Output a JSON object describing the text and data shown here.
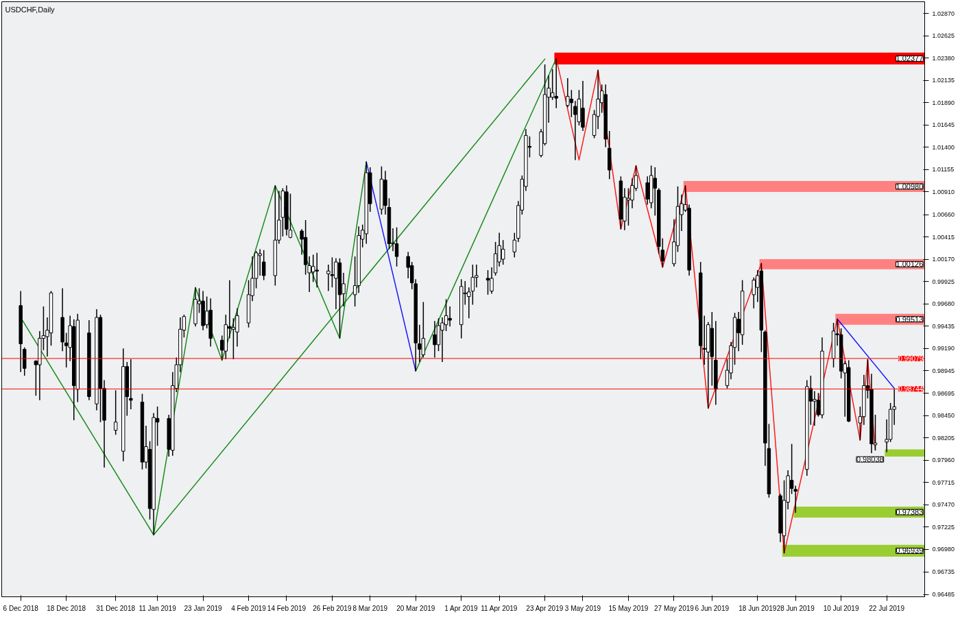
{
  "chart_data": {
    "type": "candlestick",
    "title": "USDCHF,Daily",
    "color": "#000000",
    "xlim": [
      "2018-12-01",
      "2019-08-01"
    ],
    "x": [
      "2018-12-06",
      "2018-12-07",
      "2018-12-10",
      "2018-12-11",
      "2018-12-12",
      "2018-12-13",
      "2018-12-14",
      "2018-12-17",
      "2018-12-18",
      "2018-12-19",
      "2018-12-20",
      "2018-12-21",
      "2018-12-24",
      "2018-12-26",
      "2018-12-27",
      "2018-12-28",
      "2018-12-31",
      "2019-01-02",
      "2019-01-03",
      "2019-01-04",
      "2019-01-07",
      "2019-01-08",
      "2019-01-09",
      "2019-01-10",
      "2019-01-11",
      "2019-01-14",
      "2019-01-15",
      "2019-01-16",
      "2019-01-17",
      "2019-01-18",
      "2019-01-21",
      "2019-01-22",
      "2019-01-23",
      "2019-01-24",
      "2019-01-25",
      "2019-01-28",
      "2019-01-29",
      "2019-01-30",
      "2019-01-31",
      "2019-02-01",
      "2019-02-04",
      "2019-02-05",
      "2019-02-06",
      "2019-02-07",
      "2019-02-08",
      "2019-02-11",
      "2019-02-12",
      "2019-02-13",
      "2019-02-14",
      "2019-02-15",
      "2019-02-18",
      "2019-02-19",
      "2019-02-20",
      "2019-02-21",
      "2019-02-22",
      "2019-02-25",
      "2019-02-26",
      "2019-02-27",
      "2019-02-28",
      "2019-03-01",
      "2019-03-04",
      "2019-03-05",
      "2019-03-06",
      "2019-03-07",
      "2019-03-08",
      "2019-03-11",
      "2019-03-12",
      "2019-03-13",
      "2019-03-14",
      "2019-03-15",
      "2019-03-18",
      "2019-03-19",
      "2019-03-20",
      "2019-03-21",
      "2019-03-22",
      "2019-03-25",
      "2019-03-26",
      "2019-03-27",
      "2019-03-28",
      "2019-03-29",
      "2019-04-01",
      "2019-04-02",
      "2019-04-03",
      "2019-04-04",
      "2019-04-05",
      "2019-04-08",
      "2019-04-09",
      "2019-04-10",
      "2019-04-11",
      "2019-04-12",
      "2019-04-15",
      "2019-04-16",
      "2019-04-17",
      "2019-04-18",
      "2019-04-19",
      "2019-04-22",
      "2019-04-23",
      "2019-04-24",
      "2019-04-25",
      "2019-04-26",
      "2019-04-29",
      "2019-04-30",
      "2019-05-01",
      "2019-05-02",
      "2019-05-03",
      "2019-05-06",
      "2019-05-07",
      "2019-05-08",
      "2019-05-09",
      "2019-05-10",
      "2019-05-13",
      "2019-05-14",
      "2019-05-15",
      "2019-05-16",
      "2019-05-17",
      "2019-05-20",
      "2019-05-21",
      "2019-05-22",
      "2019-05-23",
      "2019-05-24",
      "2019-05-27",
      "2019-05-28",
      "2019-05-29",
      "2019-05-30",
      "2019-05-31",
      "2019-06-03",
      "2019-06-04",
      "2019-06-05",
      "2019-06-06",
      "2019-06-07",
      "2019-06-10",
      "2019-06-11",
      "2019-06-12",
      "2019-06-13",
      "2019-06-14",
      "2019-06-17",
      "2019-06-18",
      "2019-06-19",
      "2019-06-20",
      "2019-06-21",
      "2019-06-24",
      "2019-06-25",
      "2019-06-26",
      "2019-06-27",
      "2019-06-28",
      "2019-07-01",
      "2019-07-02",
      "2019-07-03",
      "2019-07-04",
      "2019-07-05",
      "2019-07-08",
      "2019-07-09",
      "2019-07-10",
      "2019-07-11",
      "2019-07-12",
      "2019-07-15",
      "2019-07-16",
      "2019-07-17",
      "2019-07-18",
      "2019-07-19",
      "2019-07-22",
      "2019-07-23",
      "2019-07-24"
    ],
    "ohlc": [
      [
        0.9966,
        0.9982,
        0.9893,
        0.9924
      ],
      [
        0.9918,
        0.992,
        0.9889,
        0.9897
      ],
      [
        0.9905,
        0.9906,
        0.9867,
        0.9901
      ],
      [
        0.9901,
        0.9938,
        0.9862,
        0.993
      ],
      [
        0.993,
        0.9965,
        0.9917,
        0.9933
      ],
      [
        0.9932,
        0.9953,
        0.991,
        0.9939
      ],
      [
        0.9936,
        0.9982,
        0.9922,
        0.998
      ],
      [
        0.9953,
        0.9985,
        0.9916,
        0.9926
      ],
      [
        0.9925,
        0.9936,
        0.9898,
        0.9922
      ],
      [
        0.992,
        0.9955,
        0.9905,
        0.9944
      ],
      [
        0.9943,
        0.9951,
        0.984,
        0.9878
      ],
      [
        0.9874,
        0.9957,
        0.986,
        0.995
      ],
      [
        0.9936,
        0.995,
        0.9862,
        0.9866
      ],
      [
        0.9858,
        0.9962,
        0.9851,
        0.9953
      ],
      [
        0.9953,
        0.9956,
        0.9838,
        0.9875
      ],
      [
        0.9875,
        0.9884,
        0.9788,
        0.984
      ],
      [
        0.9829,
        0.9873,
        0.9824,
        0.9838
      ],
      [
        0.9806,
        0.9919,
        0.9795,
        0.9899
      ],
      [
        0.9899,
        0.9904,
        0.9845,
        0.9866
      ],
      [
        0.9864,
        0.9907,
        0.9852,
        0.9862
      ],
      [
        0.986,
        0.9869,
        0.9786,
        0.9794
      ],
      [
        0.9794,
        0.9834,
        0.9787,
        0.9811
      ],
      [
        0.9808,
        0.9817,
        0.9731,
        0.9743
      ],
      [
        0.9742,
        0.9848,
        0.9714,
        0.9843
      ],
      [
        0.9842,
        0.9855,
        0.9812,
        0.9838
      ],
      [
        0.9842,
        0.9846,
        0.98,
        0.9808
      ],
      [
        0.9807,
        0.9893,
        0.9801,
        0.9878
      ],
      [
        0.9875,
        0.9909,
        0.9871,
        0.9901
      ],
      [
        0.9901,
        0.9953,
        0.9893,
        0.994
      ],
      [
        0.9939,
        0.9956,
        0.9931,
        0.9954
      ],
      [
        0.9946,
        0.9986,
        0.9943,
        0.9973
      ],
      [
        0.9968,
        0.9985,
        0.9958,
        0.9971
      ],
      [
        0.9971,
        0.9982,
        0.9939,
        0.9944
      ],
      [
        0.9945,
        0.9976,
        0.9941,
        0.996
      ],
      [
        0.9961,
        0.9974,
        0.9921,
        0.993
      ],
      [
        0.9928,
        0.9933,
        0.9906,
        0.9917
      ],
      [
        0.9916,
        0.9956,
        0.9907,
        0.9945
      ],
      [
        0.9943,
        0.9994,
        0.993,
        0.9941
      ],
      [
        0.994,
        0.9952,
        0.9907,
        0.9942
      ],
      [
        0.9937,
        0.9963,
        0.9921,
        0.9955
      ],
      [
        0.9947,
        0.9994,
        0.9942,
        0.9978
      ],
      [
        0.9977,
        1.002,
        0.9971,
        0.9996
      ],
      [
        0.9996,
        1.0026,
        0.9985,
        1.0024
      ],
      [
        1.0021,
        1.0028,
        0.9999,
        1.0023
      ],
      [
        1.0014,
        1.0027,
        0.9994,
        0.9999
      ],
      [
        0.9999,
        1.0098,
        0.9988,
        1.0038
      ],
      [
        1.0038,
        1.0092,
        1.0034,
        1.006
      ],
      [
        1.0063,
        1.0095,
        1.0042,
        1.0092
      ],
      [
        1.0091,
        1.0098,
        1.0043,
        1.005
      ],
      [
        1.0041,
        1.0089,
        1.004,
        1.0049
      ],
      [
        1.0048,
        1.005,
        1.0022,
        1.0039
      ],
      [
        1.0041,
        1.006,
        1.0,
        1.0011
      ],
      [
        1.0002,
        1.002,
        0.9981,
        1.001
      ],
      [
        1.0003,
        1.0022,
        0.9992,
        1.0009
      ],
      [
        1.0005,
        1.0024,
        0.9986,
        1.0004
      ],
      [
        1.0001,
        1.0011,
        0.9982,
        1.0004
      ],
      [
        1.0,
        1.0019,
        0.9986,
        0.9999
      ],
      [
        0.9996,
        1.0018,
        0.9962,
        1.0014
      ],
      [
        1.0013,
        1.0018,
        0.993,
        0.9978
      ],
      [
        0.9979,
        1.0002,
        0.9965,
        0.999
      ],
      [
        0.9978,
        1.002,
        0.9965,
        0.9988
      ],
      [
        0.9988,
        1.0053,
        0.998,
        1.0043
      ],
      [
        1.0039,
        1.0055,
        1.003,
        1.0049
      ],
      [
        1.0045,
        1.0124,
        1.0034,
        1.0112
      ],
      [
        1.0112,
        1.0118,
        1.0069,
        1.0078
      ],
      [
        1.0072,
        1.0119,
        1.0066,
        1.0105
      ],
      [
        1.0104,
        1.0114,
        1.0066,
        1.0076
      ],
      [
        1.0074,
        1.0084,
        1.0028,
        1.0034
      ],
      [
        1.0034,
        1.0051,
        1.0026,
        1.0035
      ],
      [
        1.0034,
        1.0052,
        1.0009,
        1.002
      ],
      [
        1.002,
        1.0025,
        0.9996,
        1.0008
      ],
      [
        1.001,
        1.0014,
        0.9984,
        0.9991
      ],
      [
        0.999,
        0.9995,
        0.9894,
        0.9925
      ],
      [
        0.9924,
        0.9945,
        0.9904,
        0.9918
      ],
      [
        0.9912,
        0.997,
        0.9909,
        0.993
      ],
      [
        0.9934,
        0.9949,
        0.9909,
        0.9923
      ],
      [
        0.9923,
        0.9952,
        0.9916,
        0.9944
      ],
      [
        0.9939,
        0.9953,
        0.9904,
        0.9947
      ],
      [
        0.9945,
        0.9973,
        0.9938,
        0.9955
      ],
      [
        0.9952,
        0.9965,
        0.9943,
        0.995
      ],
      [
        0.9945,
        0.9995,
        0.993,
        0.9987
      ],
      [
        0.9979,
        0.9993,
        0.9967,
        0.998
      ],
      [
        0.9976,
        0.9986,
        0.9952,
        0.9981
      ],
      [
        0.9982,
        1.0011,
        0.9967,
        0.9997
      ],
      [
        0.9997,
        1.0011,
        0.9986,
        0.9999
      ],
      [
        0.9996,
        1.0005,
        0.9978,
        0.9994
      ],
      [
        0.9982,
        1.0008,
        0.9979,
        0.9996
      ],
      [
        1.0002,
        1.0036,
        0.9999,
        1.0023
      ],
      [
        1.0014,
        1.0046,
        1.0009,
        1.0032
      ],
      [
        1.0017,
        1.0038,
        1.0011,
        1.0028
      ],
      [
        1.0025,
        1.0046,
        1.0019,
        1.0038
      ],
      [
        1.004,
        1.0081,
        1.0036,
        1.0076
      ],
      [
        1.0071,
        1.0109,
        1.0066,
        1.0105
      ],
      [
        1.0097,
        1.016,
        1.0092,
        1.0153
      ],
      [
        1.0141,
        1.0152,
        1.0129,
        1.014
      ],
      [
        1.0131,
        1.016,
        1.0129,
        1.0157
      ],
      [
        1.0144,
        1.0231,
        1.0142,
        1.0198
      ],
      [
        1.0195,
        1.0219,
        1.0167,
        1.0205
      ],
      [
        1.0195,
        1.0226,
        1.0192,
        1.02
      ],
      [
        1.0196,
        1.02377,
        1.0183,
        1.0194
      ],
      [
        1.0186,
        1.0216,
        1.0184,
        1.0196
      ],
      [
        1.0193,
        1.0203,
        1.0173,
        1.0189
      ],
      [
        1.0185,
        1.0191,
        1.0126,
        1.0176
      ],
      [
        1.0168,
        1.0203,
        1.0164,
        1.0193
      ],
      [
        1.0183,
        1.0213,
        1.0158,
        1.0162
      ],
      [
        1.0153,
        1.0181,
        1.015,
        1.0176
      ],
      [
        1.0174,
        1.0225,
        1.016,
        1.0193
      ],
      [
        1.0189,
        1.0209,
        1.0178,
        1.0202
      ],
      [
        1.0198,
        1.0209,
        1.014,
        1.0149
      ],
      [
        1.0139,
        1.0158,
        1.0105,
        1.0115
      ],
      [
        1.0103,
        1.0108,
        1.005,
        1.0061
      ],
      [
        1.0059,
        1.0095,
        1.0049,
        1.0085
      ],
      [
        1.0082,
        1.0095,
        1.0054,
        1.0084
      ],
      [
        1.0082,
        1.0106,
        1.0073,
        1.0098
      ],
      [
        1.0095,
        1.012,
        1.0092,
        1.0109
      ],
      [
        1.0101,
        1.0108,
        1.0077,
        1.0083
      ],
      [
        1.0079,
        1.012,
        1.0073,
        1.0109
      ],
      [
        1.0106,
        1.0118,
        1.0065,
        1.0095
      ],
      [
        1.0093,
        1.0095,
        1.0023,
        1.0031
      ],
      [
        1.0027,
        1.004,
        1.0008,
        1.0015
      ],
      [
        1.0012,
        1.0061,
        1.0009,
        1.0036
      ],
      [
        1.0032,
        1.0097,
        1.0025,
        1.0075
      ],
      [
        1.0066,
        1.0088,
        1.0048,
        1.0078
      ],
      [
        1.0071,
        1.0098,
        1.0069,
        1.0077
      ],
      [
        1.0073,
        1.0077,
        0.9999,
        1.0005
      ],
      [
        1.0002,
        1.0014,
        0.9907,
        0.9922
      ],
      [
        0.9919,
        0.9955,
        0.9901,
        0.9918
      ],
      [
        0.9915,
        0.9948,
        0.9853,
        0.9945
      ],
      [
        0.9941,
        0.9959,
        0.9878,
        0.991
      ],
      [
        0.9906,
        0.9949,
        0.9857,
        0.9874
      ],
      [
        0.9878,
        0.9907,
        0.9875,
        0.9895
      ],
      [
        0.9892,
        0.9926,
        0.9885,
        0.9922
      ],
      [
        0.992,
        0.9958,
        0.9901,
        0.9953
      ],
      [
        0.9951,
        0.9959,
        0.9916,
        0.9936
      ],
      [
        0.9934,
        0.9994,
        0.9923,
        0.9982
      ],
      [
        0.9978,
        0.9997,
        0.9963,
        0.9994
      ],
      [
        0.9986,
        1.0005,
        0.997,
        0.9999
      ],
      [
        1.0004,
        1.00126,
        0.9915,
        0.9939
      ],
      [
        0.9937,
        0.9939,
        0.979,
        0.9815
      ],
      [
        0.9809,
        0.9836,
        0.9755,
        0.9759
      ],
      [
        0.9757,
        0.9759,
        0.9706,
        0.9716
      ],
      [
        0.9713,
        0.9774,
        0.96939,
        0.9752
      ],
      [
        0.975,
        0.9785,
        0.9742,
        0.9779
      ],
      [
        0.9774,
        0.9814,
        0.9759,
        0.9765
      ],
      [
        0.9764,
        0.9768,
        0.97383,
        0.9762
      ],
      [
        0.9786,
        0.9884,
        0.9779,
        0.9877
      ],
      [
        0.9875,
        0.9889,
        0.9835,
        0.9861
      ],
      [
        0.9861,
        0.9872,
        0.9834,
        0.9863
      ],
      [
        0.9862,
        0.987,
        0.9844,
        0.9846
      ],
      [
        0.9846,
        0.9931,
        0.9842,
        0.9916
      ],
      [
        0.9908,
        0.9947,
        0.9898,
        0.9938
      ],
      [
        0.9935,
        0.99513,
        0.9922,
        0.9934
      ],
      [
        0.9934,
        0.9941,
        0.9886,
        0.9894
      ],
      [
        0.9892,
        0.9905,
        0.9844,
        0.9902
      ],
      [
        0.9898,
        0.9906,
        0.9838,
        0.9839
      ],
      [
        0.9837,
        0.9855,
        0.9818,
        0.9844
      ],
      [
        0.9844,
        0.989,
        0.9835,
        0.9878
      ],
      [
        0.9878,
        0.9907,
        0.9864,
        0.9873
      ],
      [
        0.9874,
        0.9891,
        0.98038,
        0.9814
      ],
      [
        0.9813,
        0.9846,
        0.9807,
        0.9815
      ],
      [
        0.9816,
        0.9841,
        0.9805,
        0.9819
      ],
      [
        0.9819,
        0.9859,
        0.9816,
        0.9852
      ],
      [
        0.9852,
        0.9874,
        0.9835,
        0.98548
      ]
    ],
    "series": [
      {
        "type": "line",
        "color": "#008000",
        "x": [
          "2018-12-06",
          "2019-01-10",
          "2019-04-23"
        ],
        "values": [
          0.9953,
          0.9714,
          1.0237
        ]
      },
      {
        "type": "line",
        "color": "#008000",
        "x": [
          "2019-01-10",
          "2019-01-21",
          "2019-01-28",
          "2019-02-11",
          "2019-02-28",
          "2019-03-07"
        ],
        "values": [
          0.9714,
          0.9986,
          0.9906,
          1.0098,
          0.993,
          1.0124
        ]
      },
      {
        "type": "line",
        "color": "#0000ff",
        "x": [
          "2019-03-07",
          "2019-03-20"
        ],
        "values": [
          1.0124,
          0.9894
        ]
      },
      {
        "type": "line",
        "color": "#008000",
        "x": [
          "2019-03-20",
          "2019-04-26"
        ],
        "values": [
          0.9894,
          1.02377
        ]
      },
      {
        "type": "line",
        "color": "#ff0000",
        "x": [
          "2019-04-26",
          "2019-05-02",
          "2019-05-07",
          "2019-05-13",
          "2019-05-17",
          "2019-05-24",
          "2019-05-30",
          "2019-06-05",
          "2019-06-19",
          "2019-06-25",
          "2019-07-09",
          "2019-07-15",
          "2019-07-17",
          "2019-07-19"
        ],
        "values": [
          1.02377,
          1.0126,
          1.0225,
          1.005,
          1.012,
          1.0008,
          1.0098,
          0.9853,
          1.00126,
          0.96939,
          0.99513,
          0.9818,
          0.9907,
          0.9807
        ]
      },
      {
        "type": "line",
        "color": "#0000ff",
        "x": [
          "2019-07-09",
          "2019-07-24"
        ],
        "values": [
          0.99513,
          0.9875
        ]
      }
    ],
    "ref_lines": [
      {
        "axis": "y",
        "value": 0.99079,
        "label": "0.99079",
        "color": "#ff0000"
      },
      {
        "axis": "y",
        "value": 0.98744,
        "label": "0.98744",
        "color": "#ff0000"
      }
    ],
    "bands": [
      {
        "axis": "y",
        "from": 1.0231,
        "to": 1.0244,
        "label": "1.02377",
        "color": "#ff0000"
      },
      {
        "axis": "y",
        "from": 1.0091,
        "to": 1.0103,
        "label": "1.00980",
        "color": "#ff8080"
      },
      {
        "axis": "y",
        "from": 1.0006,
        "to": 1.0017,
        "label": "1.00126",
        "color": "#ff8080"
      },
      {
        "axis": "y",
        "from": 0.9945,
        "to": 0.9957,
        "label": "0.99513",
        "color": "#ff8080"
      },
      {
        "axis": "y",
        "from": 0.98,
        "to": 0.9808,
        "label": "0.98038",
        "color": "#9acd32"
      },
      {
        "axis": "y",
        "from": 0.9733,
        "to": 0.9745,
        "label": "0.97383",
        "color": "#9acd32"
      },
      {
        "axis": "y",
        "from": 0.969,
        "to": 0.9703,
        "label": "0.96939",
        "color": "#9acd32"
      }
    ],
    "ylim": [
      0.9646,
      1.03
    ],
    "yticks": [
      {
        "value": 1.0287,
        "label": "1.02870"
      },
      1.02625,
      {
        "value": 1.0238,
        "label": "1.02380"
      },
      1.02135,
      {
        "value": 1.0189,
        "label": "1.01890"
      },
      1.01645,
      {
        "value": 1.014,
        "label": "1.01400"
      },
      1.01155,
      {
        "value": 1.0091,
        "label": "1.00910"
      },
      {
        "value": 1.0066,
        "label": "1.00660"
      },
      1.00415,
      {
        "value": 1.0017,
        "label": "1.00170"
      },
      0.99925,
      {
        "value": 0.9968,
        "label": "0.99680"
      },
      0.99435,
      {
        "value": 0.9919,
        "label": "0.99190"
      },
      0.98945,
      0.98695,
      {
        "value": 0.9845,
        "label": "0.98450"
      },
      0.98205,
      {
        "value": 0.9796,
        "label": "0.97960"
      },
      0.97715,
      {
        "value": 0.9747,
        "label": "0.97470"
      },
      0.97225,
      {
        "value": 0.9698,
        "label": "0.96980"
      },
      0.96735,
      0.96485
    ],
    "xticks": [
      {
        "value": "2018-12-06",
        "label": "6 Dec 2018"
      },
      {
        "value": "2018-12-18",
        "label": "18 Dec 2018"
      },
      {
        "value": "2018-12-31",
        "label": "31 Dec 2018"
      },
      {
        "value": "2019-01-11",
        "label": "11 Jan 2019"
      },
      {
        "value": "2019-01-23",
        "label": "23 Jan 2019"
      },
      {
        "value": "2019-02-04",
        "label": "4 Feb 2019"
      },
      {
        "value": "2019-02-14",
        "label": "14 Feb 2019"
      },
      {
        "value": "2019-02-26",
        "label": "26 Feb 2019"
      },
      {
        "value": "2019-03-08",
        "label": "8 Mar 2019"
      },
      {
        "value": "2019-03-20",
        "label": "20 Mar 2019"
      },
      {
        "value": "2019-04-01",
        "label": "1 Apr 2019"
      },
      {
        "value": "2019-04-11",
        "label": "11 Apr 2019"
      },
      {
        "value": "2019-04-23",
        "label": "23 Apr 2019"
      },
      {
        "value": "2019-05-03",
        "label": "3 May 2019"
      },
      {
        "value": "2019-05-15",
        "label": "15 May 2019"
      },
      {
        "value": "2019-05-27",
        "label": "27 May 2019"
      },
      {
        "value": "2019-06-06",
        "label": "6 Jun 2019"
      },
      {
        "value": "2019-06-18",
        "label": "18 Jun 2019"
      },
      {
        "value": "2019-06-28",
        "label": "28 Jun 2019"
      },
      {
        "value": "2019-07-10",
        "label": "10 Jul 2019"
      },
      {
        "value": "2019-07-22",
        "label": "22 Jul 2019"
      }
    ],
    "grid": false
  }
}
